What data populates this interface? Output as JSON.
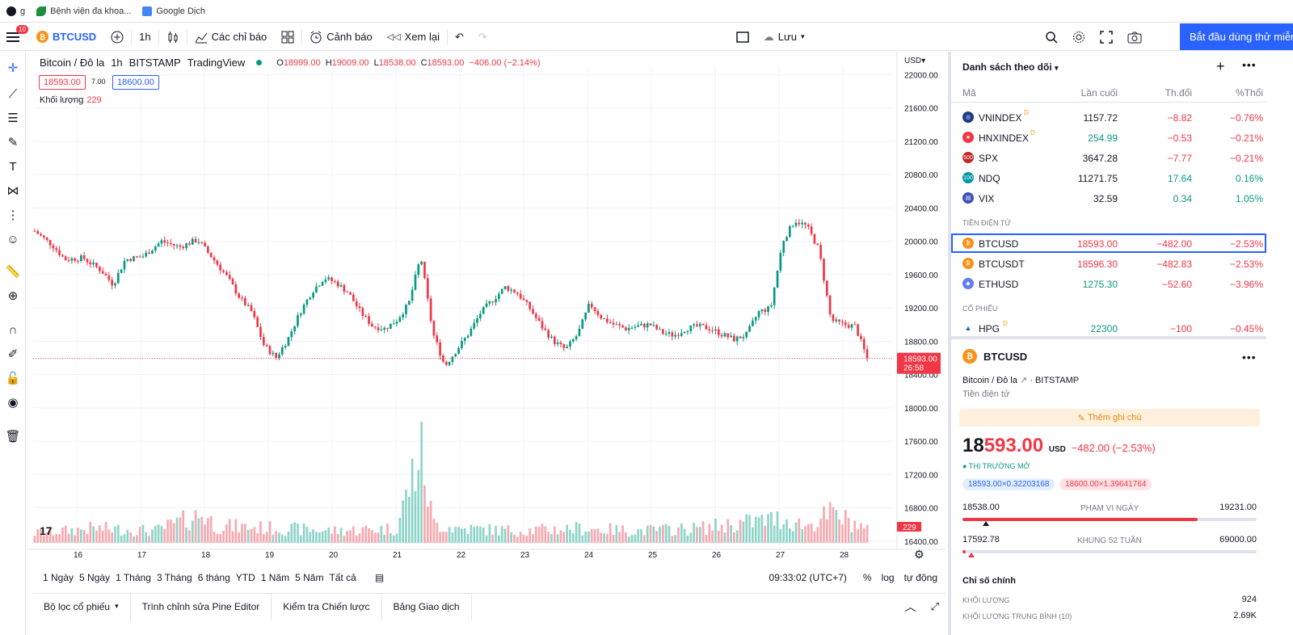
{
  "bookmarks": [
    {
      "label": "g",
      "color": "#131722"
    },
    {
      "label": "Bệnh viện đa khoa...",
      "color": "#1e8e3e"
    },
    {
      "label": "Google Dịch",
      "color": "#4285f4"
    }
  ],
  "toolbar": {
    "notif_count": "10",
    "symbol": "BTCUSD",
    "interval": "1h",
    "indicators": "Các chỉ báo",
    "alerts": "Cảnh báo",
    "replay": "Xem lại",
    "save": "Lưu",
    "cta": "Bắt đầu dùng thử miễn"
  },
  "legend": {
    "title": "Bitcoin / Đô la",
    "interval": "1h",
    "exchange": "BITSTAMP",
    "source": "TradingView",
    "o_label": "O",
    "o": "18999.00",
    "h_label": "H",
    "h": "19009.00",
    "l_label": "L",
    "l": "18538.00",
    "c_label": "C",
    "c": "18593.00",
    "change": "−406.00 (−2.14%)",
    "bid": "18593.00",
    "spread": "7.00",
    "ask": "18600.00",
    "volume_label": "Khối lượng",
    "volume": "229"
  },
  "chart_data": {
    "type": "candlestick",
    "currency": "USD",
    "y_ticks": [
      "22000.00",
      "21600.00",
      "21200.00",
      "20800.00",
      "20400.00",
      "20000.00",
      "19600.00",
      "19200.00",
      "18800.00",
      "18400.00",
      "18000.00",
      "17600.00",
      "17200.00",
      "16800.00",
      "16400.00"
    ],
    "ylim": [
      16340,
      22100
    ],
    "x_ticks": [
      "16",
      "17",
      "18",
      "19",
      "20",
      "21",
      "22",
      "23",
      "24",
      "25",
      "26",
      "27",
      "28"
    ],
    "last_price": "18593.00",
    "countdown": "26:58",
    "last_volume": "229",
    "close_path": [
      [
        0,
        20120
      ],
      [
        3,
        19950
      ],
      [
        5,
        19780
      ],
      [
        8,
        19800
      ],
      [
        11,
        19650
      ],
      [
        13,
        19480
      ],
      [
        15,
        19780
      ],
      [
        18,
        19820
      ],
      [
        21,
        20000
      ],
      [
        24,
        19930
      ],
      [
        27,
        20020
      ],
      [
        30,
        19750
      ],
      [
        32,
        19560
      ],
      [
        34,
        19320
      ],
      [
        36,
        19150
      ],
      [
        38,
        18750
      ],
      [
        40,
        18600
      ],
      [
        42,
        18830
      ],
      [
        44,
        19150
      ],
      [
        46,
        19400
      ],
      [
        48,
        19560
      ],
      [
        50,
        19500
      ],
      [
        52,
        19380
      ],
      [
        54,
        19150
      ],
      [
        56,
        18980
      ],
      [
        58,
        18950
      ],
      [
        60,
        19050
      ],
      [
        62,
        19250
      ],
      [
        64,
        19820
      ],
      [
        66,
        18900
      ],
      [
        68,
        18500
      ],
      [
        70,
        18700
      ],
      [
        72,
        18900
      ],
      [
        74,
        19150
      ],
      [
        76,
        19300
      ],
      [
        78,
        19450
      ],
      [
        80,
        19380
      ],
      [
        82,
        19200
      ],
      [
        84,
        18980
      ],
      [
        86,
        18800
      ],
      [
        88,
        18700
      ],
      [
        90,
        18880
      ],
      [
        92,
        19250
      ],
      [
        94,
        19080
      ],
      [
        96,
        19000
      ],
      [
        98,
        18950
      ],
      [
        100,
        18980
      ],
      [
        102,
        19000
      ],
      [
        104,
        18900
      ],
      [
        106,
        18870
      ],
      [
        108,
        18950
      ],
      [
        110,
        18980
      ],
      [
        112,
        18950
      ],
      [
        114,
        18880
      ],
      [
        116,
        18820
      ],
      [
        118,
        18880
      ],
      [
        120,
        19150
      ],
      [
        122,
        19200
      ],
      [
        124,
        20000
      ],
      [
        126,
        20250
      ],
      [
        128,
        20180
      ],
      [
        130,
        19900
      ],
      [
        132,
        19050
      ],
      [
        134,
        19000
      ],
      [
        136,
        18980
      ],
      [
        138,
        18593
      ]
    ],
    "volume_path": [
      [
        0,
        20
      ],
      [
        10,
        30
      ],
      [
        20,
        25
      ],
      [
        28,
        60
      ],
      [
        30,
        35
      ],
      [
        40,
        30
      ],
      [
        50,
        25
      ],
      [
        60,
        30
      ],
      [
        64,
        195
      ],
      [
        66,
        40
      ],
      [
        70,
        30
      ],
      [
        80,
        25
      ],
      [
        90,
        30
      ],
      [
        100,
        25
      ],
      [
        110,
        30
      ],
      [
        120,
        45
      ],
      [
        124,
        50
      ],
      [
        128,
        35
      ],
      [
        132,
        60
      ],
      [
        136,
        40
      ],
      [
        138,
        25
      ]
    ]
  },
  "bottombar": {
    "timeframes": [
      "1 Ngày",
      "5 Ngày",
      "1 Tháng",
      "3 Tháng",
      "6 tháng",
      "YTD",
      "1 Năm",
      "5 Năm",
      "Tất cả"
    ],
    "time": "09:33:02 (UTC+7)",
    "pct": "%",
    "log": "log",
    "auto": "tự động"
  },
  "panels": [
    "Bộ lọc cổ phiếu",
    "Trình chỉnh sửa Pine Editor",
    "Kiểm tra Chiến lược",
    "Bảng Giao dịch"
  ],
  "watchlist": {
    "title": "Danh sách theo dõi",
    "cols": [
      "Mã",
      "Lần cuối",
      "Th.đổi",
      "%Thổi"
    ],
    "indices": [
      {
        "sym": "VNINDEX",
        "last": "1157.72",
        "chg": "−8.82",
        "pct": "−0.76%",
        "color": "#1e3a8a",
        "icon": "◎",
        "flag": "D"
      },
      {
        "sym": "HNXINDEX",
        "last": "254.99",
        "chg": "−0.53",
        "pct": "−0.21%",
        "color": "#f23645",
        "icon": "★",
        "flag": "D"
      },
      {
        "sym": "SPX",
        "last": "3647.28",
        "chg": "−7.77",
        "pct": "−0.21%",
        "color": "#c62828",
        "icon": "500",
        "flag": ""
      },
      {
        "sym": "NDQ",
        "last": "11271.75",
        "chg": "17.64",
        "pct": "0.16%",
        "color": "#0097a7",
        "icon": "100",
        "flag": ""
      },
      {
        "sym": "VIX",
        "last": "32.59",
        "chg": "0.34",
        "pct": "1.05%",
        "color": "#3f51b5",
        "icon": "▤",
        "flag": ""
      }
    ],
    "crypto_section": "TIỀN ĐIỆN TỬ",
    "crypto": [
      {
        "sym": "BTCUSD",
        "last": "18593.00",
        "chg": "−482.00",
        "pct": "−2.53%",
        "color": "#f7931a",
        "icon": "₿"
      },
      {
        "sym": "BTCUSDT",
        "last": "18596.30",
        "chg": "−482.83",
        "pct": "−2.53%",
        "color": "#f7931a",
        "icon": "₿"
      },
      {
        "sym": "ETHUSD",
        "last": "1275.30",
        "chg": "−52.60",
        "pct": "−3.96%",
        "color": "#627eea",
        "icon": "◆"
      }
    ],
    "stock_section": "CỔ PHIẾU",
    "stocks": [
      {
        "sym": "HPG",
        "last": "22300",
        "chg": "−100",
        "pct": "−0.45%",
        "color": "#1565c0",
        "icon": "▲",
        "flag": "D"
      }
    ]
  },
  "details": {
    "symbol": "BTCUSD",
    "name": "Bitcoin / Đô la",
    "exchange": "BITSTAMP",
    "category": "Tiền điện tử",
    "note_button": "Thêm ghi chú",
    "price_main": "18",
    "price_rest": "593.00",
    "currency": "USD",
    "change": "−482.00 (−2.53%)",
    "market_status": "THỊ TRƯỜNG MỞ",
    "bid_chip": "18593.00×0.32203168",
    "ask_chip": "18600.00×1.39641764",
    "day_low": "18538.00",
    "day_label": "PHẠM VI NGÀY",
    "day_high": "19231.00",
    "day_marker_fraction": 0.08,
    "week_low": "17592.78",
    "week_label": "KHUNG 52 TUẦN",
    "week_high": "69000.00",
    "week_marker_fraction": 0.02,
    "key_stats": "Chỉ số chính",
    "vol_label": "KHỐI LƯỢNG",
    "vol_value": "924",
    "avg_vol_label": "KHỐI LƯỢNG TRUNG BÌNH (10)",
    "avg_vol_value": "2.69K"
  },
  "colors": {
    "up": "#089981",
    "down": "#f23645",
    "accent": "#2962ff",
    "grid": "#f0f3fa"
  }
}
